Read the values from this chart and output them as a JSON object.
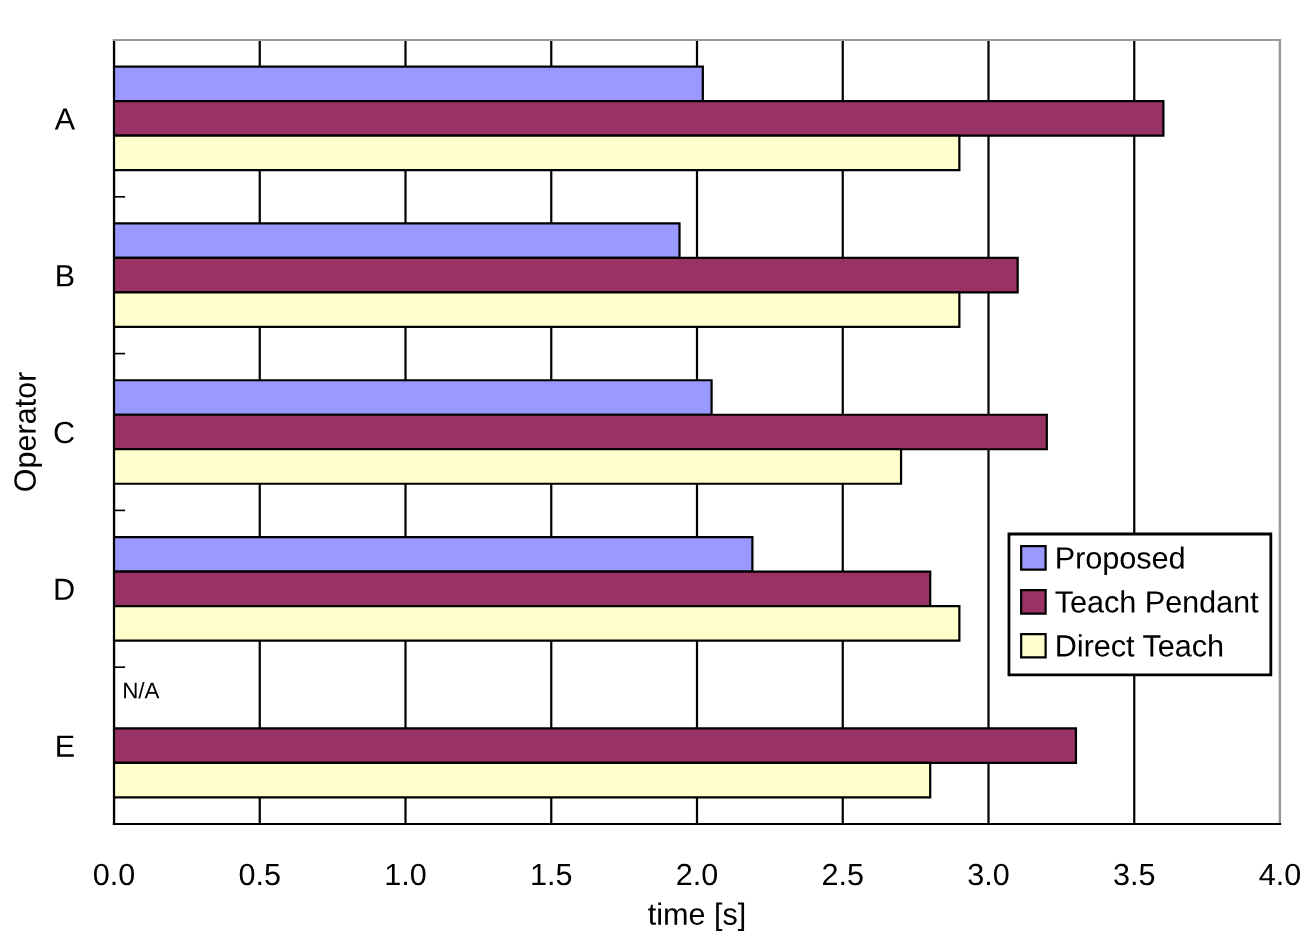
{
  "chart_data": {
    "type": "bar",
    "orientation": "horizontal",
    "xlabel": "time [s]",
    "ylabel": "Operator",
    "categories": [
      "A",
      "B",
      "C",
      "D",
      "E"
    ],
    "series": [
      {
        "name": "Proposed",
        "color": "#9999ff",
        "values": [
          2.02,
          1.94,
          2.05,
          2.19,
          null
        ]
      },
      {
        "name": "Teach Pendant",
        "color": "#993366",
        "values": [
          3.6,
          3.1,
          3.2,
          2.8,
          3.3
        ]
      },
      {
        "name": "Direct Teach",
        "color": "#ffffcc",
        "values": [
          2.9,
          2.9,
          2.7,
          2.9,
          2.8
        ]
      }
    ],
    "xlim": [
      0,
      4
    ],
    "xticks": [
      {
        "value": 0,
        "label": "0.0"
      },
      0.5,
      {
        "value": 1,
        "label": "1.0"
      },
      1.5,
      {
        "value": 2,
        "label": "2.0"
      },
      2.5,
      {
        "value": 3,
        "label": "3.0"
      },
      3.5,
      {
        "value": 4,
        "label": "4.0"
      }
    ],
    "annotations": [
      {
        "text": "N/A",
        "x": 0,
        "y": "E"
      }
    ],
    "grid": "x",
    "legend": "right"
  }
}
